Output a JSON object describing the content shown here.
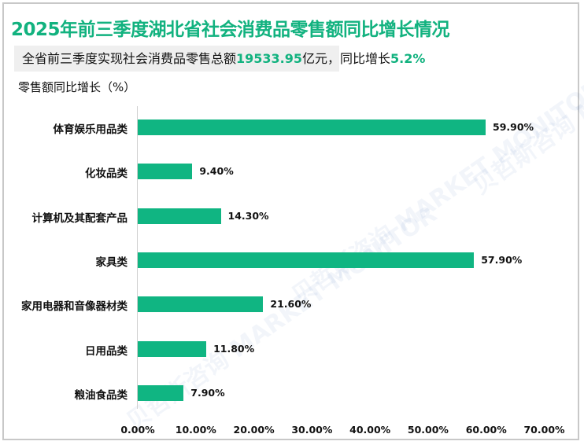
{
  "title": "2025年前三季度湖北省社会消费品零售额同比增长情况",
  "summary": {
    "prefix": "全省前三季度实现社会消费品零售总额",
    "total": "19533.95",
    "mid": "亿元，同比增长",
    "growth": "5.2%"
  },
  "watermark": "贝哲斯咨询 MARKET MONITOR",
  "chart_data": {
    "type": "bar",
    "orientation": "horizontal",
    "title": "2025年前三季度湖北省社会消费品零售额同比增长情况",
    "subtitle": "全省前三季度实现社会消费品零售总额19533.95亿元，同比增长5.2%",
    "xlabel": "",
    "ylabel": "零售额同比增长（%）",
    "categories": [
      "体育娱乐用品类",
      "化妆品类",
      "计算机及其配套产品",
      "家具类",
      "家用电器和音像器材类",
      "日用品类",
      "粮油食品类"
    ],
    "values": [
      59.9,
      9.4,
      14.3,
      57.9,
      21.6,
      11.8,
      7.9
    ],
    "value_labels": [
      "59.90%",
      "9.40%",
      "14.30%",
      "57.90%",
      "21.60%",
      "11.80%",
      "7.90%"
    ],
    "xlim": [
      0,
      70
    ],
    "xticks": [
      "0.00%",
      "10.00%",
      "20.00%",
      "30.00%",
      "40.00%",
      "50.00%",
      "60.00%",
      "70.00%"
    ],
    "grid": false,
    "legend": "none",
    "color": "#10b582"
  }
}
